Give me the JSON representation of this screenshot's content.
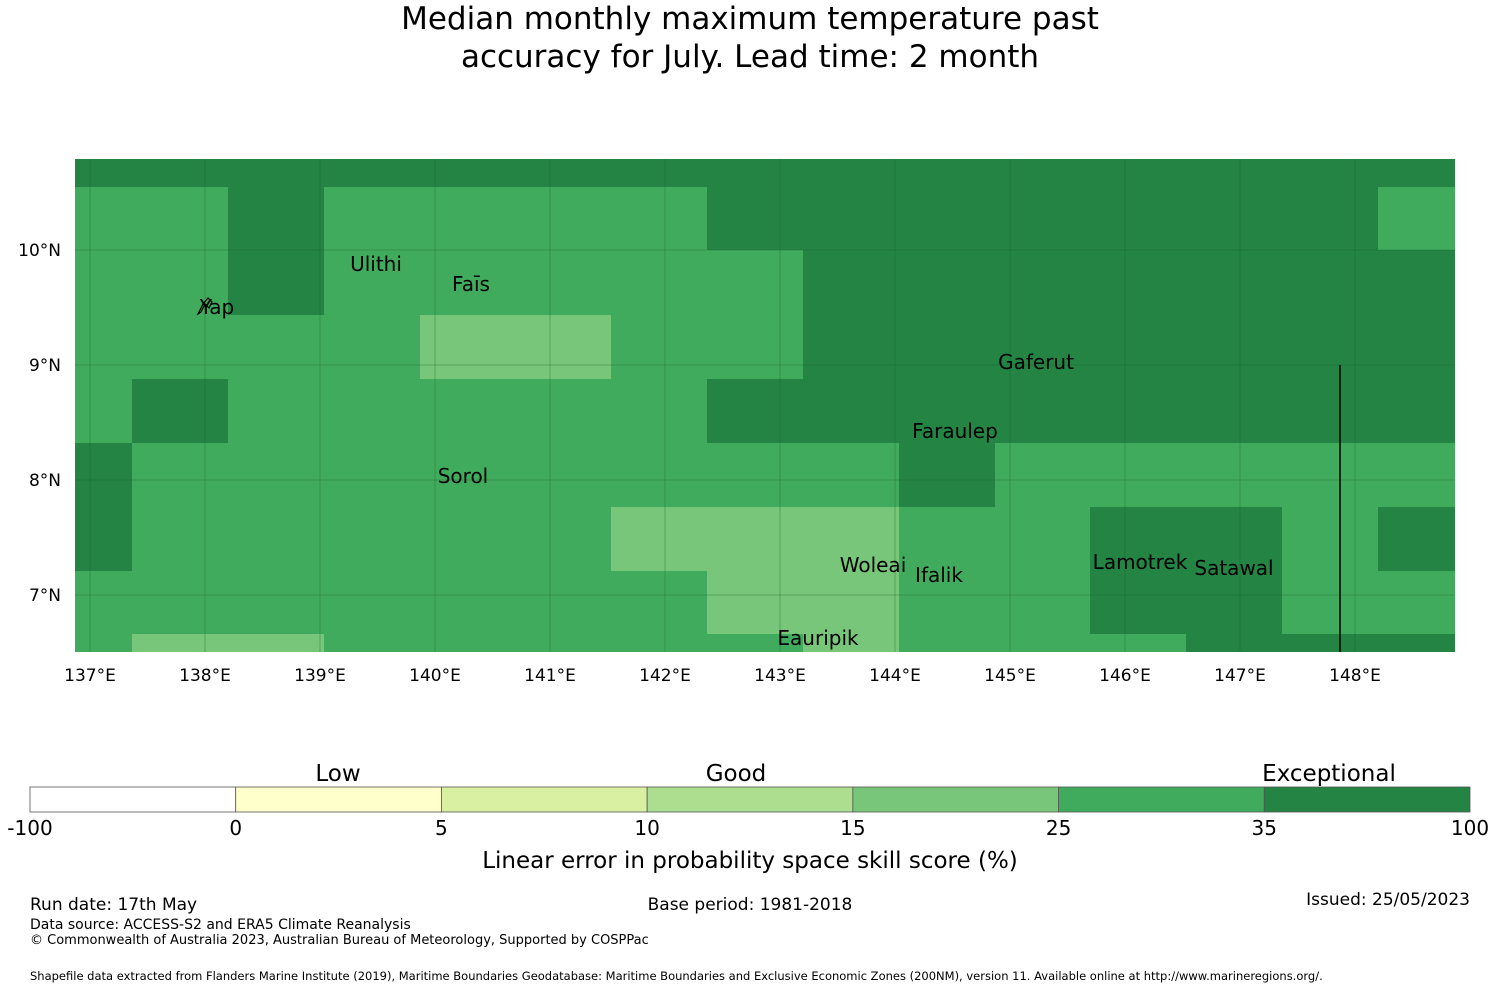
{
  "title": {
    "line1": "Median monthly maximum temperature past",
    "line2": "accuracy for July. Lead time: 2 month"
  },
  "map": {
    "lon_ticks": [
      "137°E",
      "138°E",
      "139°E",
      "140°E",
      "141°E",
      "142°E",
      "143°E",
      "144°E",
      "145°E",
      "146°E",
      "147°E",
      "148°E"
    ],
    "lat_ticks": [
      "10°N",
      "9°N",
      "8°N",
      "7°N"
    ],
    "lon_range": [
      137,
      149
    ],
    "lat_range": [
      6.5,
      10.8
    ],
    "places": [
      {
        "name": "Ulithi",
        "lon": 139.8,
        "lat": 9.95
      },
      {
        "name": "Faīs",
        "lon": 140.5,
        "lat": 9.75
      },
      {
        "name": "Yap",
        "lon": 138.2,
        "lat": 9.5
      },
      {
        "name": "Gaferut",
        "lon": 145.4,
        "lat": 9.1
      },
      {
        "name": "Faraulep",
        "lon": 144.7,
        "lat": 8.5
      },
      {
        "name": "Sorol",
        "lon": 140.4,
        "lat": 8.1
      },
      {
        "name": "Woleai",
        "lon": 143.9,
        "lat": 7.35
      },
      {
        "name": "Ifalik",
        "lon": 144.5,
        "lat": 7.25
      },
      {
        "name": "Lamotrek",
        "lon": 146.3,
        "lat": 7.38
      },
      {
        "name": "Satawal",
        "lon": 147.1,
        "lat": 7.33
      },
      {
        "name": "Eauripik",
        "lon": 143.4,
        "lat": 6.6
      }
    ]
  },
  "colorbar": {
    "categories": [
      "Low",
      "Good",
      "Exceptional"
    ],
    "boundaries": [
      "-100",
      "0",
      "5",
      "10",
      "15",
      "25",
      "35",
      "100"
    ],
    "colors": [
      "#ffffff",
      "#ffffcc",
      "#d9f0a3",
      "#addd8e",
      "#78c679",
      "#41ab5d",
      "#238443"
    ],
    "label": "Linear error in probability space skill score (%)"
  },
  "footer": {
    "run_date": "Run date: 17th May",
    "base_period": "Base period: 1981-2018",
    "issued": "Issued: 25/05/2023",
    "data_source": "Data source: ACCESS-S2 and ERA5 Climate Reanalysis",
    "copyright": "© Commonwealth of Australia 2023, Australian Bureau of Meteorology, Supported by COSPPac",
    "shapefile": "Shapefile data extracted from Flanders Marine Institute (2019), Maritime Boundaries Geodatabase: Maritime Boundaries and Exclusive Economic Zones (200NM), version 11. Available online at http://www.marineregions.org/."
  }
}
